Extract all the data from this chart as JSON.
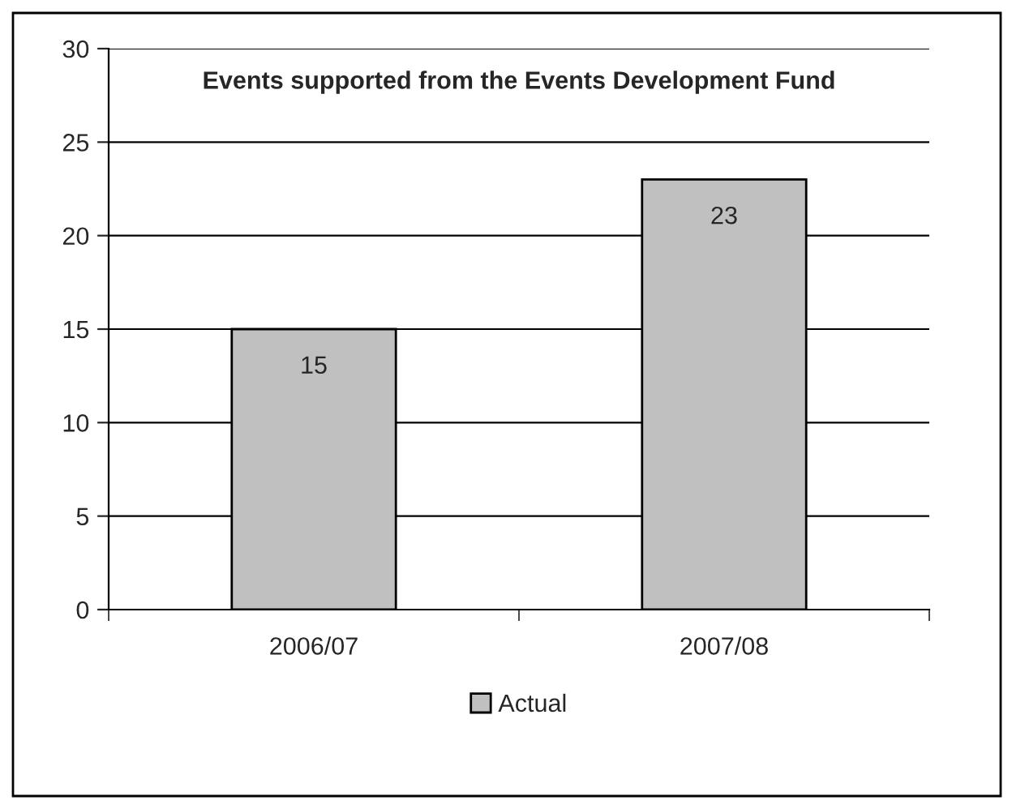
{
  "chart_data": {
    "type": "bar",
    "title": "Events supported from the Events Development Fund",
    "categories": [
      "2006/07",
      "2007/08"
    ],
    "series": [
      {
        "name": "Actual",
        "color": "#c0c0c0",
        "values": [
          15,
          23
        ]
      }
    ],
    "ylim": [
      0,
      30
    ],
    "yticks": [
      0,
      5,
      10,
      15,
      20,
      25,
      30
    ],
    "grid": "y",
    "legend": "bottom",
    "data_labels": true
  }
}
